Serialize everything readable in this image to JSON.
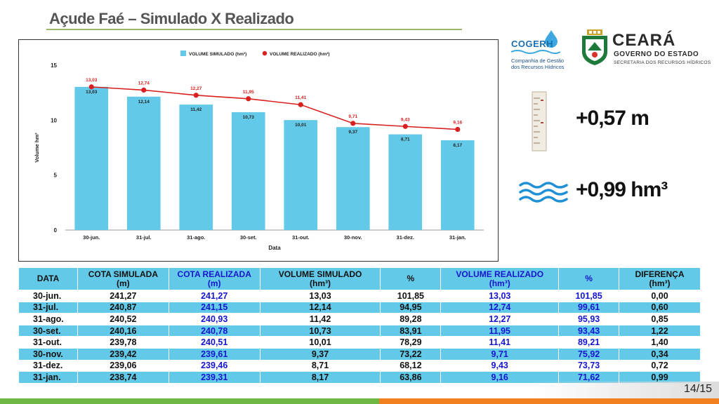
{
  "title": "Açude Faé – Simulado X Realizado",
  "logos": {
    "cogerh_name": "COGERH",
    "cogerh_sub_line1": "Companhia de Gestão",
    "cogerh_sub_line2": "dos Recursos Hídricos",
    "ceara_name": "CEARÁ",
    "ceara_gov": "GOVERNO DO ESTADO",
    "ceara_sec": "SECRETARIA DOS RECURSOS HÍDRICOS"
  },
  "summary": {
    "level_delta": "+0,57 m",
    "volume_delta": "+0,99 hm³",
    "gauge_icon": "water-gauge-icon",
    "waves_icon": "water-waves-icon"
  },
  "colors": {
    "bar": "#63c9e8",
    "line": "#d92020",
    "header_blue": "#1515d0"
  },
  "chart_data": {
    "type": "bar",
    "categories": [
      "30-jun.",
      "31-jul.",
      "31-ago.",
      "30-set.",
      "31-out.",
      "30-nov.",
      "31-dez.",
      "31-jan."
    ],
    "series": [
      {
        "name": "VOLUME SIMULADO (hm³)",
        "type": "bar",
        "values": [
          13.03,
          12.14,
          11.42,
          10.73,
          10.01,
          9.37,
          8.71,
          8.17
        ],
        "labels": [
          "13,03",
          "12,14",
          "11,42",
          "10,73",
          "10,01",
          "9,37",
          "8,71",
          "8,17"
        ]
      },
      {
        "name": "VOLUME REALIZADO (hm³)",
        "type": "line",
        "values": [
          13.03,
          12.74,
          12.27,
          11.95,
          11.41,
          9.71,
          9.43,
          9.16
        ],
        "labels": [
          "13,03",
          "12,74",
          "12,27",
          "11,95",
          "11,41",
          "9,71",
          "9,43",
          "9,16"
        ]
      }
    ],
    "xlabel": "Data",
    "ylabel": "Volume hm³",
    "ylim": [
      0,
      15
    ],
    "yticks": [
      "0",
      "5",
      "10",
      "15"
    ],
    "grid": false,
    "legend": "top-center"
  },
  "table": {
    "headers": [
      {
        "line1": "DATA",
        "line2": "",
        "blue": false
      },
      {
        "line1": "COTA SIMULADA",
        "line2": "(m)",
        "blue": false
      },
      {
        "line1": "COTA REALIZADA",
        "line2": "(m)",
        "blue": true
      },
      {
        "line1": "VOLUME SIMULADO",
        "line2": "(hm³)",
        "blue": false
      },
      {
        "line1": "%",
        "line2": "",
        "blue": false
      },
      {
        "line1": "VOLUME REALIZADO",
        "line2": "(hm³)",
        "blue": true
      },
      {
        "line1": "%",
        "line2": "",
        "blue": true
      },
      {
        "line1": "DIFERENÇA",
        "line2": "(hm³)",
        "blue": false
      }
    ],
    "blue_columns": [
      2,
      5,
      6
    ],
    "rows": [
      [
        "30-jun.",
        "241,27",
        "241,27",
        "13,03",
        "101,85",
        "13,03",
        "101,85",
        "0,00"
      ],
      [
        "31-jul.",
        "240,87",
        "241,15",
        "12,14",
        "94,95",
        "12,74",
        "99,61",
        "0,60"
      ],
      [
        "31-ago.",
        "240,52",
        "240,93",
        "11,42",
        "89,28",
        "12,27",
        "95,93",
        "0,85"
      ],
      [
        "30-set.",
        "240,16",
        "240,78",
        "10,73",
        "83,91",
        "11,95",
        "93,43",
        "1,22"
      ],
      [
        "31-out.",
        "239,78",
        "240,51",
        "10,01",
        "78,29",
        "11,41",
        "89,21",
        "1,40"
      ],
      [
        "30-nov.",
        "239,42",
        "239,61",
        "9,37",
        "73,22",
        "9,71",
        "75,92",
        "0,34"
      ],
      [
        "31-dez.",
        "239,06",
        "239,46",
        "8,71",
        "68,12",
        "9,43",
        "73,73",
        "0,72"
      ],
      [
        "31-jan.",
        "238,74",
        "239,31",
        "8,17",
        "63,86",
        "9,16",
        "71,62",
        "0,99"
      ]
    ]
  },
  "page_number": "14/15"
}
